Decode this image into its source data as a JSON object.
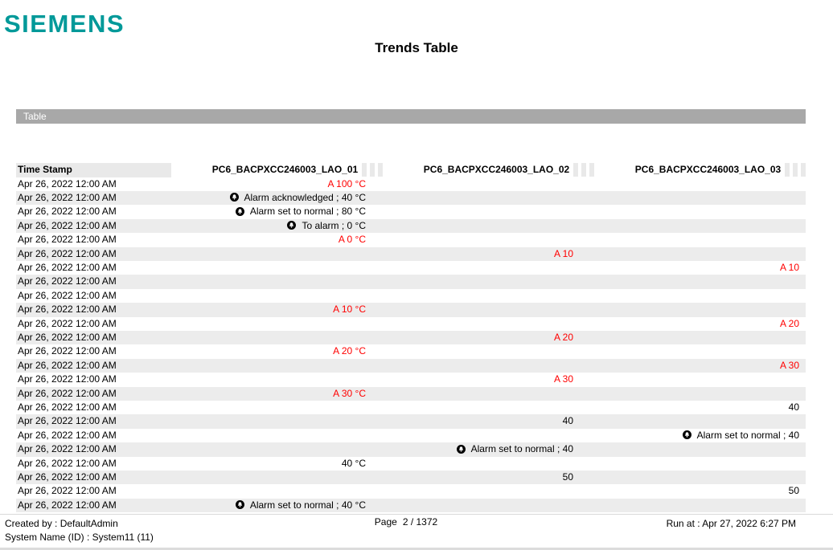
{
  "brand": {
    "logo_text": "SIEMENS",
    "logo_color": "#009999"
  },
  "title": "Trends Table",
  "section_bar": {
    "label": "Table"
  },
  "table": {
    "columns": {
      "time_stamp": "Time Stamp",
      "c1": "PC6_BACPXCC246003_LAO_01",
      "c2": "PC6_BACPXCC246003_LAO_02",
      "c3": "PC6_BACPXCC246003_LAO_03"
    },
    "rows": [
      {
        "ts": "Apr 26, 2022 12:00 AM",
        "col": 1,
        "text": "A 100 °C",
        "red": true,
        "alarm": false
      },
      {
        "ts": "Apr 26, 2022 12:00 AM",
        "col": 1,
        "text": "Alarm acknowledged ; 40 °C",
        "red": false,
        "alarm": true
      },
      {
        "ts": "Apr 26, 2022 12:00 AM",
        "col": 1,
        "text": "Alarm set to normal ; 80 °C",
        "red": false,
        "alarm": true
      },
      {
        "ts": "Apr 26, 2022 12:00 AM",
        "col": 1,
        "text": "To alarm ; 0 °C",
        "red": false,
        "alarm": true
      },
      {
        "ts": "Apr 26, 2022 12:00 AM",
        "col": 1,
        "text": "A 0 °C",
        "red": true,
        "alarm": false
      },
      {
        "ts": "Apr 26, 2022 12:00 AM",
        "col": 2,
        "text": "A 10",
        "red": true,
        "alarm": false
      },
      {
        "ts": "Apr 26, 2022 12:00 AM",
        "col": 3,
        "text": "A 10",
        "red": true,
        "alarm": false
      },
      {
        "ts": "Apr 26, 2022 12:00 AM",
        "col": 0,
        "text": "",
        "red": false,
        "alarm": false
      },
      {
        "ts": "Apr 26, 2022 12:00 AM",
        "col": 0,
        "text": "",
        "red": false,
        "alarm": false
      },
      {
        "ts": "Apr 26, 2022 12:00 AM",
        "col": 1,
        "text": "A 10 °C",
        "red": true,
        "alarm": false
      },
      {
        "ts": "Apr 26, 2022 12:00 AM",
        "col": 3,
        "text": "A 20",
        "red": true,
        "alarm": false
      },
      {
        "ts": "Apr 26, 2022 12:00 AM",
        "col": 2,
        "text": "A 20",
        "red": true,
        "alarm": false
      },
      {
        "ts": "Apr 26, 2022 12:00 AM",
        "col": 1,
        "text": "A 20 °C",
        "red": true,
        "alarm": false
      },
      {
        "ts": "Apr 26, 2022 12:00 AM",
        "col": 3,
        "text": "A 30",
        "red": true,
        "alarm": false
      },
      {
        "ts": "Apr 26, 2022 12:00 AM",
        "col": 2,
        "text": "A 30",
        "red": true,
        "alarm": false
      },
      {
        "ts": "Apr 26, 2022 12:00 AM",
        "col": 1,
        "text": "A 30 °C",
        "red": true,
        "alarm": false
      },
      {
        "ts": "Apr 26, 2022 12:00 AM",
        "col": 3,
        "text": "40",
        "red": false,
        "alarm": false
      },
      {
        "ts": "Apr 26, 2022 12:00 AM",
        "col": 2,
        "text": "40",
        "red": false,
        "alarm": false
      },
      {
        "ts": "Apr 26, 2022 12:00 AM",
        "col": 3,
        "text": "Alarm set to normal ; 40",
        "red": false,
        "alarm": true
      },
      {
        "ts": "Apr 26, 2022 12:00 AM",
        "col": 2,
        "text": "Alarm set to normal ; 40",
        "red": false,
        "alarm": true
      },
      {
        "ts": "Apr 26, 2022 12:00 AM",
        "col": 1,
        "text": "40 °C",
        "red": false,
        "alarm": false
      },
      {
        "ts": "Apr 26, 2022 12:00 AM",
        "col": 2,
        "text": "50",
        "red": false,
        "alarm": false
      },
      {
        "ts": "Apr 26, 2022 12:00 AM",
        "col": 3,
        "text": "50",
        "red": false,
        "alarm": false
      },
      {
        "ts": "Apr 26, 2022 12:00 AM",
        "col": 1,
        "text": "Alarm set to normal ; 40 °C",
        "red": false,
        "alarm": true
      }
    ]
  },
  "footer": {
    "created_by": "Created by : DefaultAdmin",
    "system_name": "System Name (ID) : System11 (11)",
    "page_label": "Page",
    "page_value": "2 / 1372",
    "run_at": "Run at : Apr 27, 2022 6:27 PM"
  },
  "colors": {
    "brand_teal": "#009999",
    "section_bar_gray": "#a8a8a8",
    "row_stripe_gray": "#ececec",
    "header_cell_gray": "#e9e9e9",
    "alarm_red": "#ff0000"
  }
}
